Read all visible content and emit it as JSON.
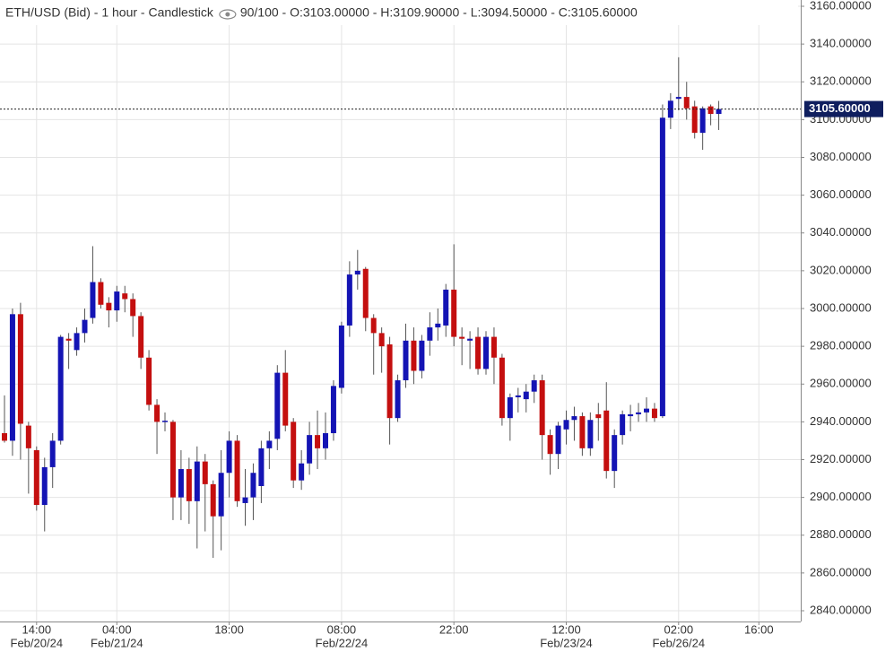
{
  "chart_data": {
    "type": "candlestick",
    "title": "ETH/USD (Bid) - 1 hour - Candlestick",
    "info": "90/100 - O:3103.00000 - H:3109.90000 - L:3094.50000 - C:3105.60000",
    "categories": [
      null,
      null,
      null,
      null,
      "14:00",
      null,
      null,
      null,
      null,
      null,
      null,
      null,
      null,
      null,
      "04:00",
      null,
      null,
      null,
      null,
      null,
      null,
      null,
      null,
      null,
      null,
      null,
      null,
      null,
      "18:00",
      null,
      null,
      null,
      null,
      null,
      null,
      null,
      null,
      null,
      null,
      null,
      null,
      null,
      "08:00",
      null,
      null,
      null,
      null,
      null,
      null,
      null,
      null,
      null,
      null,
      null,
      null,
      null,
      "22:00",
      null,
      null,
      null,
      null,
      null,
      null,
      null,
      null,
      null,
      null,
      null,
      null,
      null,
      "12:00",
      null,
      null,
      null,
      null,
      null,
      null,
      null,
      null,
      null,
      null,
      null,
      null,
      null,
      "02:00",
      null,
      null,
      null,
      null,
      null,
      null,
      null,
      null,
      null,
      "16:00",
      null,
      null,
      null,
      null,
      null
    ],
    "category_dates": [
      null,
      null,
      null,
      null,
      "Feb/20/24",
      null,
      null,
      null,
      null,
      null,
      null,
      null,
      null,
      null,
      "Feb/21/24",
      null,
      null,
      null,
      null,
      null,
      null,
      null,
      null,
      null,
      null,
      null,
      null,
      null,
      null,
      null,
      null,
      null,
      null,
      null,
      null,
      null,
      null,
      null,
      null,
      null,
      null,
      null,
      "Feb/22/24",
      null,
      null,
      null,
      null,
      null,
      null,
      null,
      null,
      null,
      null,
      null,
      null,
      null,
      null,
      null,
      null,
      null,
      null,
      null,
      null,
      null,
      null,
      null,
      null,
      null,
      null,
      null,
      "Feb/23/24",
      null,
      null,
      null,
      null,
      null,
      null,
      null,
      null,
      null,
      null,
      null,
      null,
      null,
      "Feb/26/24",
      null,
      null,
      null,
      null,
      null,
      null,
      null,
      null,
      null,
      null,
      null,
      null,
      null,
      null,
      null
    ],
    "open": [
      2934,
      2930,
      2997,
      2938,
      2925,
      2896,
      2916,
      2930,
      2984,
      2978,
      2987,
      2995,
      3014,
      3003,
      2999,
      3008,
      3005,
      2996,
      2974,
      2949,
      2940,
      2940,
      2900,
      2915,
      2898,
      2919,
      2907,
      2890,
      2913,
      2930,
      2897,
      2900,
      2906,
      2926,
      2931,
      2966,
      2940,
      2909,
      2918,
      2933,
      2926,
      2934,
      2958,
      2991,
      3018,
      3021,
      2995,
      2987,
      2981,
      2942,
      2962,
      2983,
      2967,
      2983,
      2990,
      2991,
      3010,
      2985,
      2983,
      2985,
      2968,
      2985,
      2974,
      2942,
      2953,
      2952,
      2956,
      2962,
      2933,
      2923,
      2936,
      2941,
      2943,
      2926,
      2944,
      2946,
      2914,
      2933,
      2943,
      2944,
      2945,
      2947,
      2943,
      3101,
      3111,
      3112,
      3107,
      3093,
      3107,
      3103,
      null,
      null,
      null,
      null,
      null,
      null,
      null,
      null,
      null,
      null
    ],
    "high": [
      2954,
      3000,
      3003,
      2940,
      2927,
      2921,
      2934,
      2986,
      2987,
      2990,
      3000,
      3033,
      3016,
      3006,
      3012,
      3012,
      3008,
      2998,
      2978,
      2952,
      2945,
      2941,
      2925,
      2921,
      2927,
      2923,
      2909,
      2925,
      2935,
      2933,
      2915,
      2918,
      2930,
      2935,
      2970,
      2978,
      2942,
      2925,
      2940,
      2946,
      2945,
      2962,
      2993,
      3025,
      3031,
      3022,
      2997,
      2990,
      2985,
      2965,
      2992,
      2990,
      2986,
      2998,
      3000,
      3013,
      3034,
      2990,
      2988,
      2990,
      2988,
      2990,
      2976,
      2955,
      2958,
      2960,
      2965,
      2965,
      2936,
      2940,
      2946,
      2948,
      2945,
      2945,
      2950,
      2961,
      2936,
      2946,
      2949,
      2950,
      2953,
      2950,
      3108,
      3114,
      3133,
      3120,
      3110,
      3107,
      3108,
      3109.9,
      null,
      null,
      null,
      null,
      null,
      null,
      null,
      null,
      null,
      null
    ],
    "low": [
      2929,
      2922,
      2920,
      2902,
      2893,
      2882,
      2905,
      2928,
      2968,
      2975,
      2982,
      2992,
      3000,
      2990,
      2993,
      2998,
      2985,
      2968,
      2946,
      2923,
      2935,
      2888,
      2888,
      2886,
      2873,
      2882,
      2868,
      2872,
      2900,
      2895,
      2885,
      2888,
      2897,
      2915,
      2925,
      2935,
      2905,
      2904,
      2912,
      2915,
      2920,
      2930,
      2955,
      2985,
      3010,
      2988,
      2965,
      2966,
      2928,
      2940,
      2958,
      2960,
      2963,
      2975,
      2983,
      2985,
      2980,
      2970,
      2968,
      2965,
      2965,
      2960,
      2938,
      2930,
      2945,
      2945,
      2950,
      2920,
      2912,
      2915,
      2928,
      2930,
      2922,
      2922,
      2930,
      2910,
      2905,
      2928,
      2935,
      2940,
      2940,
      2940,
      2942,
      3095,
      3105,
      3100,
      3090,
      3084,
      3097,
      3094.5,
      null,
      null,
      null,
      null,
      null,
      null,
      null,
      null,
      null,
      null
    ],
    "close": [
      2930,
      2997,
      2939,
      2926,
      2896,
      2916,
      2930,
      2985,
      2983,
      2987,
      2994,
      3014,
      3002,
      2999,
      3009,
      3005,
      2996,
      2974,
      2949,
      2940,
      2940.6,
      2900,
      2915,
      2898,
      2919,
      2907,
      2890,
      2913,
      2930,
      2898,
      2900,
      2913,
      2926,
      2930,
      2966,
      2938,
      2909,
      2918,
      2933,
      2926,
      2934,
      2959,
      2991,
      3018,
      3020,
      2995,
      2987,
      2980,
      2942,
      2962,
      2983,
      2967,
      2983,
      2990,
      2992,
      3010,
      2985,
      2984,
      2984,
      2968,
      2985,
      2974,
      2942,
      2953,
      2954,
      2956,
      2962,
      2933,
      2923,
      2938,
      2941,
      2943,
      2926,
      2941,
      2942,
      2914,
      2933,
      2944,
      2944,
      2945,
      2947,
      2942,
      3101,
      3110,
      3112,
      3106,
      3093,
      3106,
      3103,
      3105.6,
      null,
      null,
      null,
      null,
      null,
      null,
      null,
      null,
      null,
      null
    ],
    "up_color": "#1414b4",
    "down_color": "#c40f0f",
    "ylim": [
      2840,
      3160
    ],
    "yticks": [
      {
        "value": 2840,
        "label": "2840.00000"
      },
      {
        "value": 2860,
        "label": "2860.00000"
      },
      {
        "value": 2880,
        "label": "2880.00000"
      },
      {
        "value": 2900,
        "label": "2900.00000"
      },
      {
        "value": 2920,
        "label": "2920.00000"
      },
      {
        "value": 2940,
        "label": "2940.00000"
      },
      {
        "value": 2960,
        "label": "2960.00000"
      },
      {
        "value": 2980,
        "label": "2980.00000"
      },
      {
        "value": 3000,
        "label": "3000.00000"
      },
      {
        "value": 3020,
        "label": "3020.00000"
      },
      {
        "value": 3040,
        "label": "3040.00000"
      },
      {
        "value": 3060,
        "label": "3060.00000"
      },
      {
        "value": 3080,
        "label": "3080.00000"
      },
      {
        "value": 3100,
        "label": "3100.00000"
      },
      {
        "value": 3120,
        "label": "3120.00000"
      },
      {
        "value": 3140,
        "label": "3140.00000"
      },
      {
        "value": 3160,
        "label": "3160.00000"
      }
    ],
    "last_price": {
      "value": 3105.6,
      "label": "3105.60000"
    },
    "grid": true
  }
}
